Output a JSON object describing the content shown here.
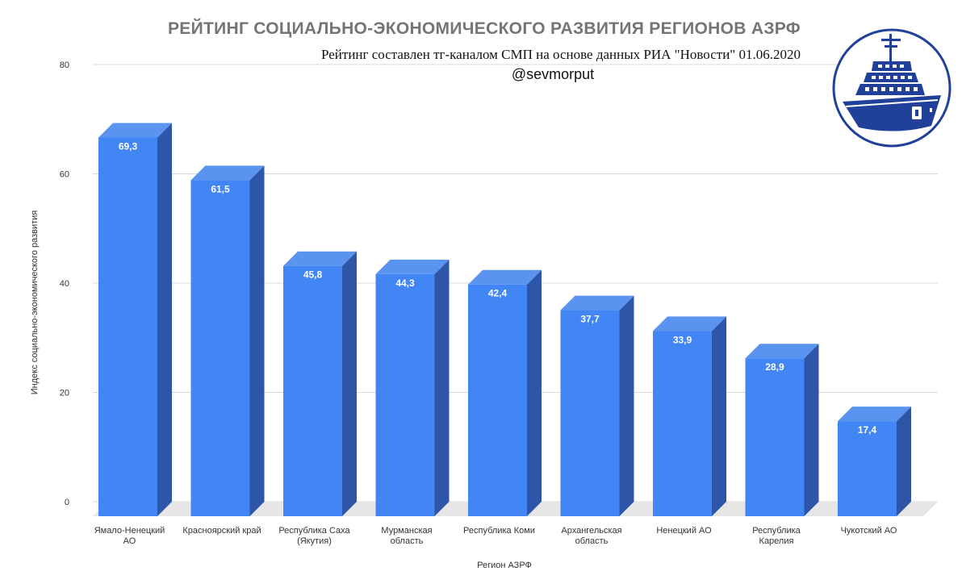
{
  "colors": {
    "bar_front": "#4285f4",
    "bar_side": "#2d55a8",
    "bar_top": "#5b94f0",
    "floor": "#e6e6e6",
    "grid": "#d9d9d9",
    "title": "#757575",
    "logo_blue": "#20409a"
  },
  "header": {
    "title": "РЕЙТИНГ СОЦИАЛЬНО-ЭКОНОМИЧЕСКОГО РАЗВИТИЯ РЕГИОНОВ АЗРФ",
    "subtitle": "Рейтинг составлен тг-каналом СМП на основе данных РИА \"Новости\" 01.06.2020",
    "handle": "@sevmorput"
  },
  "logo": {
    "icon": "icebreaker-ship-logo"
  },
  "chart_data": {
    "type": "bar",
    "style": "3d",
    "categories": [
      "Ямало-Ненецкий АО",
      "Красноярский край",
      "Республика Саха (Якутия)",
      "Мурманская область",
      "Республика Коми",
      "Архангельская область",
      "Ненецкий АО",
      "Республика Карелия",
      "Чукотский АО"
    ],
    "values": [
      69.3,
      61.5,
      45.8,
      44.3,
      42.4,
      37.7,
      33.9,
      28.9,
      17.4
    ],
    "data_labels": [
      "69,3",
      "61,5",
      "45,8",
      "44,3",
      "42,4",
      "37,7",
      "33,9",
      "28,9",
      "17,4"
    ],
    "xlabel": "Регион АЗРФ",
    "ylabel": "Индекс социально-экономического развития",
    "ylim": [
      0,
      80
    ],
    "yticks": [
      0,
      20,
      40,
      60,
      80
    ],
    "grid": true,
    "legend": "none"
  }
}
